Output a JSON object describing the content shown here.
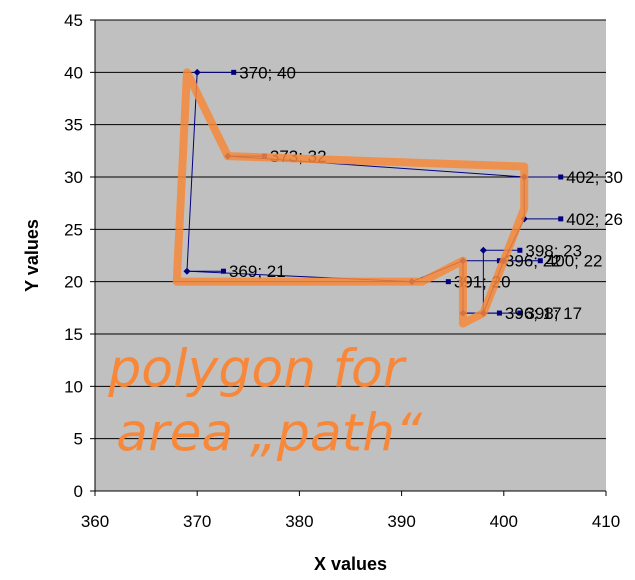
{
  "chart_data": {
    "type": "scatter",
    "xlabel": "X values",
    "ylabel": "Y values",
    "xlim": [
      360,
      410
    ],
    "ylim": [
      0,
      45
    ],
    "xticks": [
      360,
      370,
      380,
      390,
      400,
      410
    ],
    "yticks": [
      0,
      5,
      10,
      15,
      20,
      25,
      30,
      35,
      40,
      45
    ],
    "grid": "horizontal",
    "plot_background": "#c0c0c0",
    "series_color": "#000080",
    "annotation_color": "#f7883a",
    "series": [
      {
        "x": [
          370,
          369,
          391,
          396,
          396,
          398,
          398,
          398,
          400,
          402,
          402,
          373
        ],
        "y": [
          40,
          21,
          20,
          22,
          17,
          17,
          23,
          17,
          22,
          26,
          30,
          32
        ]
      }
    ],
    "data_labels": [
      {
        "x": 370,
        "y": 40,
        "text": "370; 40"
      },
      {
        "x": 373,
        "y": 32,
        "text": "373; 32"
      },
      {
        "x": 402,
        "y": 30,
        "text": "402; 30"
      },
      {
        "x": 402,
        "y": 26,
        "text": "402; 26"
      },
      {
        "x": 369,
        "y": 21,
        "text": "369; 21"
      },
      {
        "x": 398,
        "y": 23,
        "text": "398; 23"
      },
      {
        "x": 396,
        "y": 22,
        "text": "396; 22"
      },
      {
        "x": 400,
        "y": 22,
        "text": "400; 22"
      },
      {
        "x": 391,
        "y": 20,
        "text": "391; 20"
      },
      {
        "x": 396,
        "y": 17,
        "text": "396; 17"
      },
      {
        "x": 398,
        "y": 17,
        "text": "398; 17"
      }
    ],
    "annotation": {
      "lines": [
        "polygon for",
        "area „path“"
      ],
      "outline": [
        [
          368,
          20
        ],
        [
          369,
          40
        ],
        [
          373,
          32
        ],
        [
          402,
          31
        ],
        [
          402,
          27
        ],
        [
          400,
          22
        ],
        [
          398,
          17
        ],
        [
          396,
          16
        ],
        [
          396,
          22
        ],
        [
          392,
          20
        ],
        [
          368,
          20
        ]
      ]
    }
  }
}
